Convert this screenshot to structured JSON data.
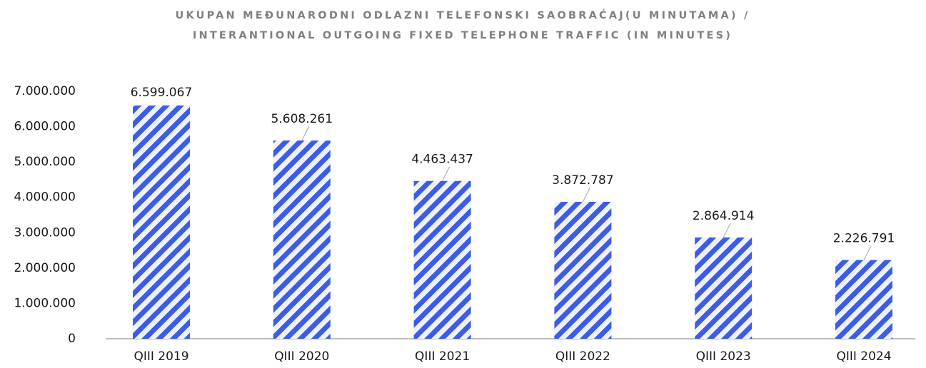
{
  "chart_data": {
    "type": "bar",
    "title": [
      "UKUPAN MEĐUNARODNI ODLAZNI TELEFONSKI SAOBRAĆAJ(U MINUTAMA) /",
      "INTERANTIONAL OUTGOING FIXED TELEPHONE TRAFFIC (IN MINUTES)"
    ],
    "categories": [
      "QIII 2019",
      "QIII 2020",
      "QIII 2021",
      "QIII 2022",
      "QIII 2023",
      "QIII 2024"
    ],
    "values": [
      6599067,
      5608261,
      4463437,
      3872787,
      2864914,
      2226791
    ],
    "value_labels": [
      "6.599.067",
      "5.608.261",
      "4.463.437",
      "3.872.787",
      "2.864.914",
      "2.226.791"
    ],
    "color": "#3d5ce6",
    "ylim": [
      0,
      7000000
    ],
    "yticks": [
      0,
      {
        "value": 1000000,
        "label": "1.000.000"
      },
      {
        "value": 2000000,
        "label": "2.000.000"
      },
      {
        "value": 3000000,
        "label": "3.000.000"
      },
      {
        "value": 4000000,
        "label": "4.000.000"
      },
      {
        "value": 5000000,
        "label": "5.000.000"
      },
      {
        "value": 6000000,
        "label": "6.000.000"
      },
      {
        "value": 7000000,
        "label": "7.000.000"
      }
    ]
  }
}
